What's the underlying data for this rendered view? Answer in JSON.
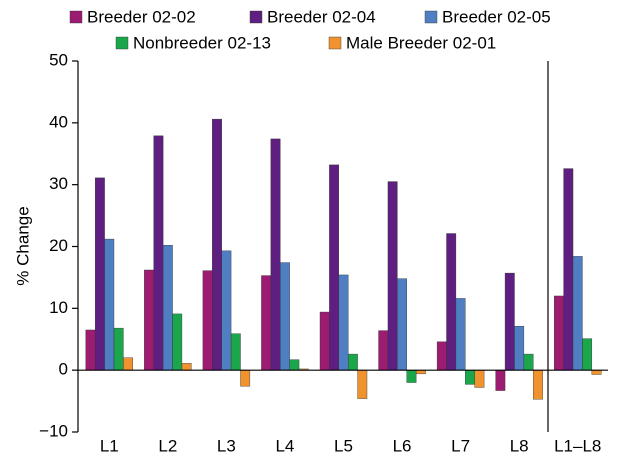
{
  "chart_data": {
    "type": "bar",
    "y_label": "% Change",
    "categories": [
      "L1",
      "L2",
      "L3",
      "L4",
      "L5",
      "L6",
      "L7",
      "L8",
      "L1–L8"
    ],
    "series": [
      {
        "name": "Breeder 02-02",
        "color": "#9c1c72",
        "values": [
          6.5,
          16.2,
          16.1,
          15.3,
          9.4,
          6.4,
          4.6,
          -3.3,
          12.0
        ]
      },
      {
        "name": "Breeder 02-04",
        "color": "#5e1f80",
        "values": [
          31.1,
          37.9,
          40.6,
          37.4,
          33.2,
          30.5,
          22.1,
          15.7,
          32.6
        ]
      },
      {
        "name": "Breeder 02-05",
        "color": "#4f7fc2",
        "values": [
          21.2,
          20.2,
          19.3,
          17.4,
          15.4,
          14.8,
          11.6,
          7.1,
          18.4
        ]
      },
      {
        "name": "Nonbreeder 02-13",
        "color": "#1ba64c",
        "values": [
          6.8,
          9.1,
          5.9,
          1.7,
          2.6,
          -2.0,
          -2.3,
          2.6,
          5.1
        ]
      },
      {
        "name": "Male Breeder 02-01",
        "color": "#f0922e",
        "values": [
          2.0,
          1.1,
          -2.6,
          0.2,
          -4.6,
          -0.6,
          -2.8,
          -4.7,
          -0.7
        ]
      }
    ],
    "ylim": [
      -10,
      50
    ],
    "yticks": [
      {
        "value": -10,
        "label": "−10"
      },
      0,
      10,
      20,
      30,
      40,
      50
    ],
    "legend": "top",
    "grid": false
  }
}
